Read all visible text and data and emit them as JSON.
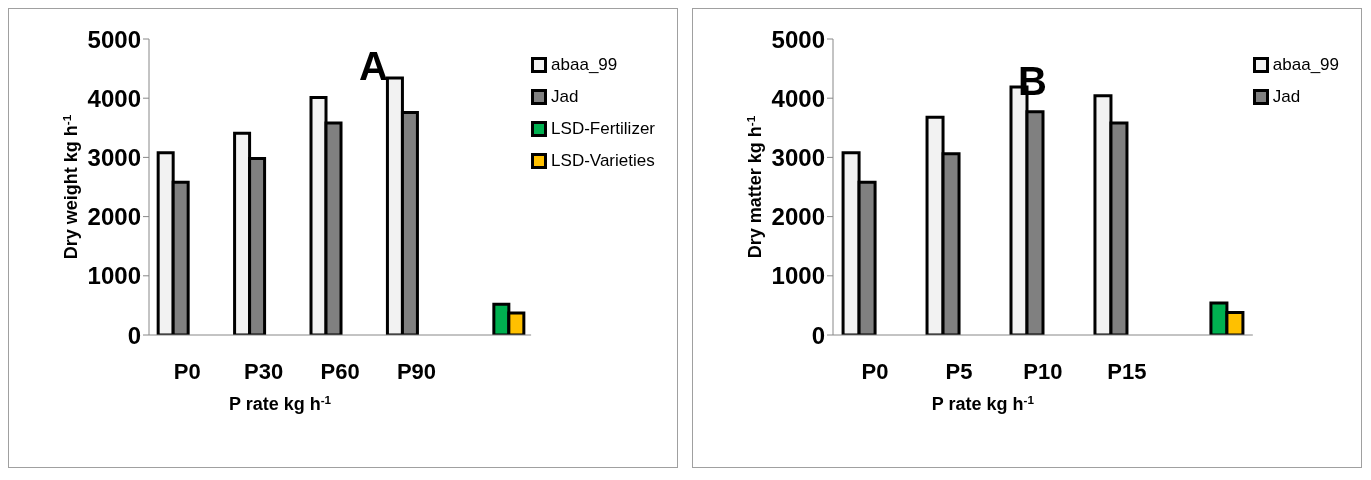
{
  "chart_data": [
    {
      "type": "bar",
      "title": "A",
      "xlabel": "P rate kg h$^{-1}$",
      "ylabel": "Dry weight kg h$^{-1}$",
      "categories": [
        "P0",
        "P30",
        "P60",
        "P90",
        null
      ],
      "series": [
        {
          "name": "abaa_99",
          "color": "#f2f2f2",
          "values": [
            3080,
            3410,
            4010,
            4340,
            null
          ]
        },
        {
          "name": "Jad",
          "color": "#808080",
          "values": [
            2580,
            2980,
            3580,
            3760,
            null
          ]
        },
        {
          "name": "LSD-Fertilizer",
          "color": "#00b050",
          "values": [
            null,
            null,
            null,
            null,
            520
          ]
        },
        {
          "name": "LSD-Varieties",
          "color": "#ffc000",
          "values": [
            null,
            null,
            null,
            null,
            370
          ]
        }
      ],
      "ylim": [
        0,
        5000
      ],
      "yticks": [
        0,
        1000,
        2000,
        3000,
        4000,
        5000
      ],
      "grid": false,
      "legend": "top right"
    },
    {
      "type": "bar",
      "title": "B",
      "xlabel": "P rate kg h$^{-1}$",
      "ylabel": "Dry matter kg h$^{-1}$",
      "categories": [
        "P0",
        "P5",
        "P10",
        "P15",
        null
      ],
      "series": [
        {
          "name": "abaa_99",
          "color": "#f2f2f2",
          "values": [
            3080,
            3680,
            4190,
            4040,
            null
          ]
        },
        {
          "name": "Jad",
          "color": "#808080",
          "values": [
            2580,
            3060,
            3770,
            3580,
            null
          ]
        },
        {
          "color": "#00b050",
          "values": [
            null,
            null,
            null,
            null,
            540
          ]
        },
        {
          "color": "#ffc000",
          "values": [
            null,
            null,
            null,
            null,
            380
          ]
        }
      ],
      "ylim": [
        0,
        5000
      ],
      "yticks": [
        0,
        1000,
        2000,
        3000,
        4000,
        5000
      ],
      "grid": false,
      "legend": "top right"
    }
  ]
}
